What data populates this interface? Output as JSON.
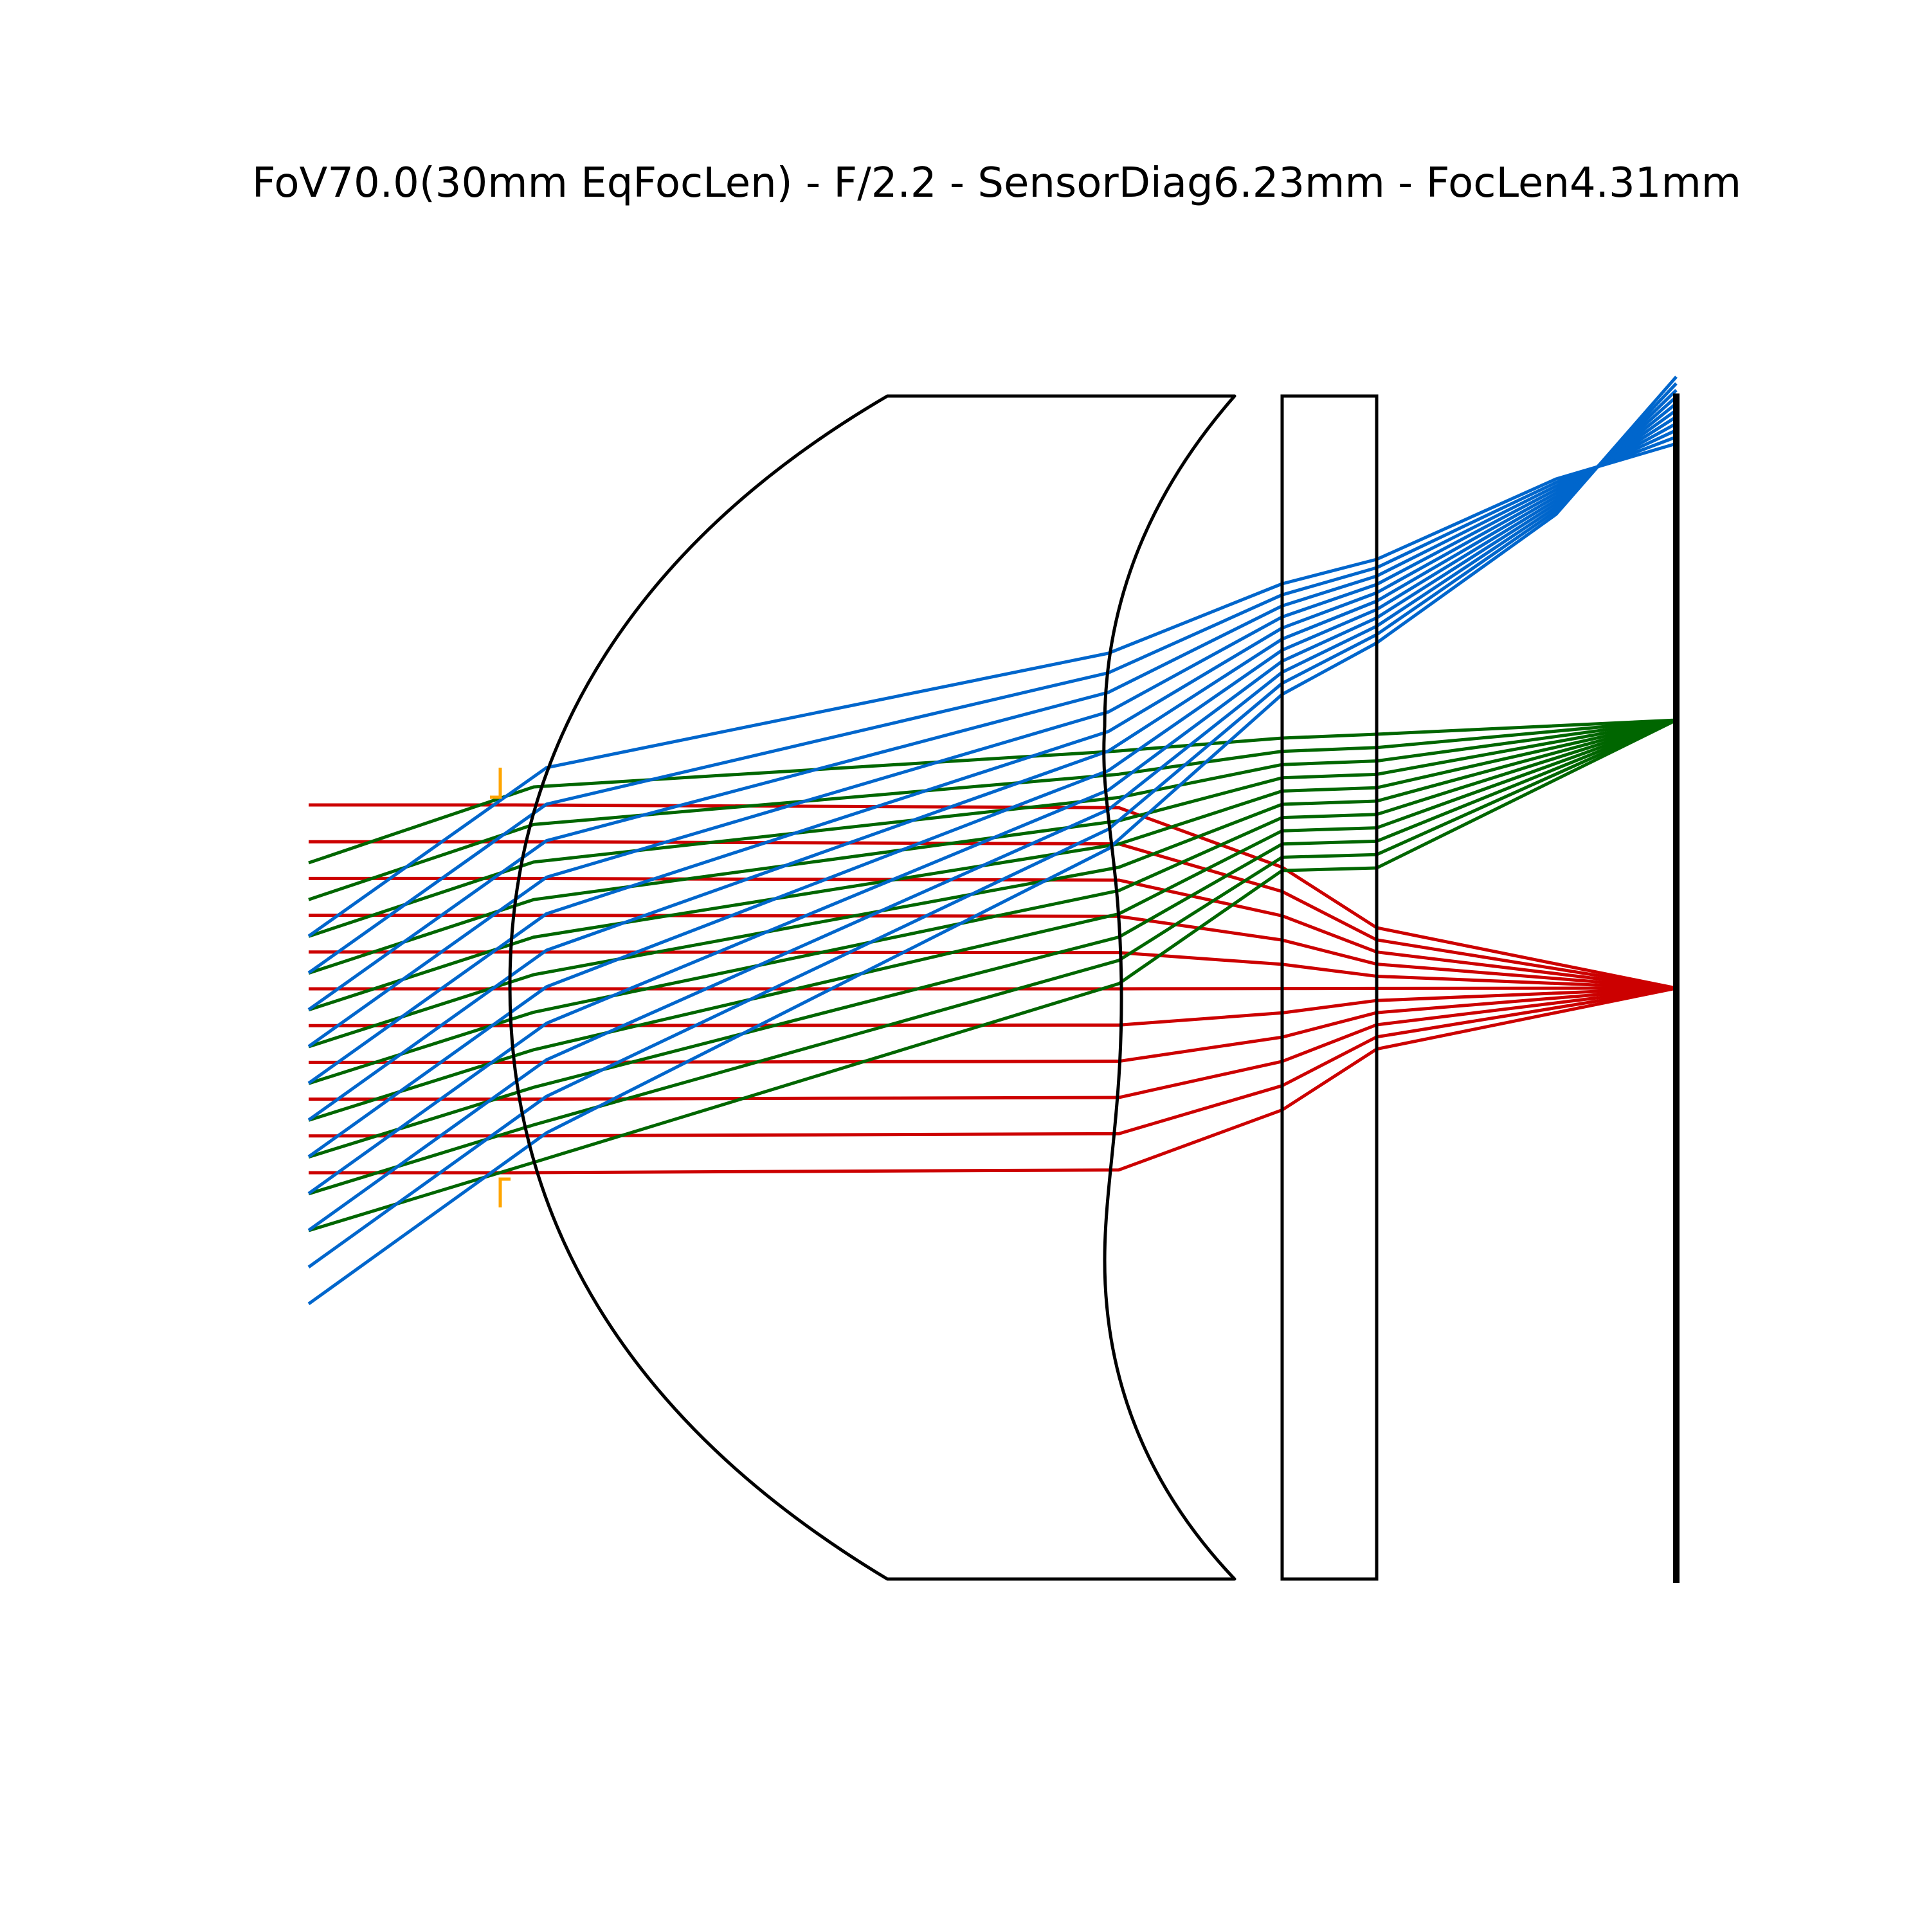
{
  "title": "FoV70.0(30mm EqFocLen) - F/2.2 - SensorDiag6.23mm - FocLen4.31mm",
  "colors": {
    "on_axis_rays": "#cc0000",
    "mid_field_rays": "#006600",
    "full_field_rays": "#0066cc",
    "aperture_stop": "#ffa500",
    "elements": "#000000",
    "background": "#ffffff"
  },
  "ray_bundles": [
    {
      "field": "on-axis",
      "color_key": "on_axis_rays",
      "ray_count": 11
    },
    {
      "field": "mid-field",
      "color_key": "mid_field_rays",
      "ray_count": 11
    },
    {
      "field": "full-field",
      "color_key": "full_field_rays",
      "ray_count": 11
    }
  ],
  "elements": [
    {
      "name": "lens-element",
      "type": "meniscus lens"
    },
    {
      "name": "cover-glass",
      "type": "plane parallel plate"
    },
    {
      "name": "image-sensor",
      "type": "image plane"
    },
    {
      "name": "aperture-stop",
      "type": "stop"
    }
  ]
}
